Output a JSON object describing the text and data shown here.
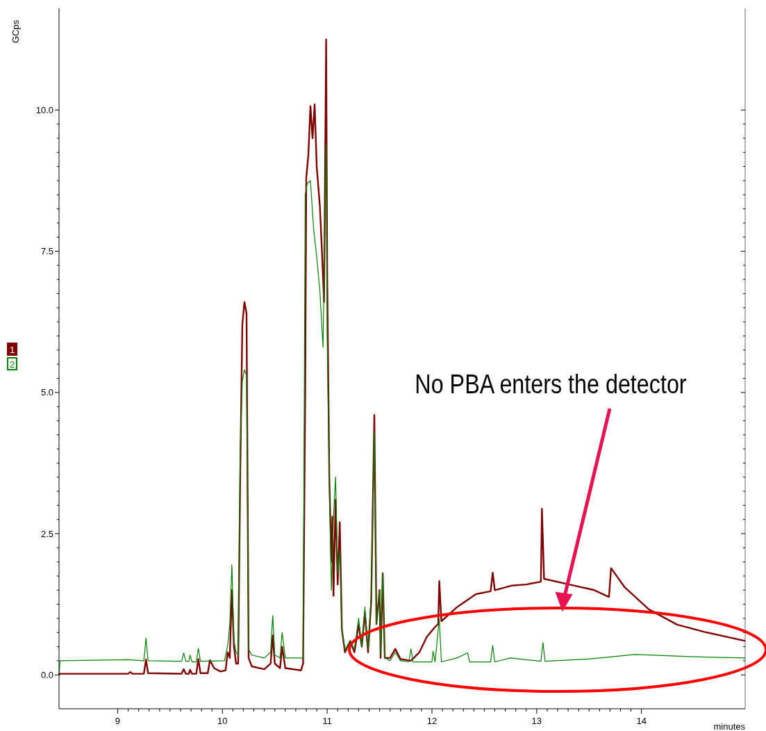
{
  "chart_data": {
    "type": "line",
    "ylabel": "GCps",
    "xlabel": "minutes",
    "xlim": [
      8.44,
      14.99
    ],
    "ylim": [
      -0.6,
      11.8
    ],
    "xticks": [
      9,
      10,
      11,
      12,
      13,
      14
    ],
    "yticks": [
      {
        "value": 0,
        "label": "0.0"
      },
      {
        "value": 2.5,
        "label": "2.5"
      },
      {
        "value": 5,
        "label": "5.0"
      },
      {
        "value": 7.5,
        "label": "7.5"
      },
      {
        "value": 10,
        "label": "10.0"
      }
    ],
    "legend": "left",
    "grid": false,
    "marker": "none",
    "line_style": "solid",
    "annotations": [
      "No PBA enters the detector"
    ],
    "series": [
      {
        "name": "1",
        "color": "#800000",
        "x": [
          8.44,
          8.45,
          9.1,
          9.12,
          9.14,
          9.25,
          9.27,
          9.29,
          9.61,
          9.63,
          9.65,
          9.68,
          9.69,
          9.71,
          9.75,
          9.77,
          9.79,
          9.86,
          9.88,
          9.92,
          9.98,
          10.03,
          10.05,
          10.07,
          10.09,
          10.11,
          10.13,
          10.15,
          10.17,
          10.19,
          10.21,
          10.23,
          10.25,
          10.28,
          10.4,
          10.46,
          10.48,
          10.5,
          10.55,
          10.57,
          10.6,
          10.75,
          10.77,
          10.79,
          10.8,
          10.82,
          10.84,
          10.86,
          10.88,
          10.9,
          10.93,
          10.95,
          10.97,
          10.99,
          11.0,
          11.02,
          11.04,
          11.05,
          11.06,
          11.08,
          11.1,
          11.12,
          11.14,
          11.17,
          11.22,
          11.26,
          11.3,
          11.33,
          11.36,
          11.39,
          11.42,
          11.45,
          11.47,
          11.5,
          11.51,
          11.53,
          11.55,
          11.6,
          11.65,
          11.7,
          11.8,
          11.88,
          11.95,
          12.03,
          12.06,
          12.07,
          12.09,
          12.24,
          12.42,
          12.56,
          12.58,
          12.6,
          12.76,
          12.9,
          13.04,
          13.05,
          13.07,
          13.31,
          13.55,
          13.69,
          13.71,
          13.84,
          14.07,
          14.34,
          14.6,
          14.99
        ],
        "values": [
          0,
          0.02,
          0.02,
          0.05,
          0.02,
          0.02,
          0.27,
          0.03,
          0.02,
          0.1,
          0.02,
          0.02,
          0.09,
          0.02,
          0.02,
          0.28,
          0.03,
          0.03,
          0.26,
          0.12,
          0.06,
          0.08,
          0.4,
          0.3,
          1.5,
          0.5,
          0.2,
          0.2,
          3.6,
          6.2,
          6.6,
          6.4,
          0.3,
          0.15,
          0.1,
          0.2,
          0.7,
          0.2,
          0.12,
          0.5,
          0.12,
          0.08,
          0.2,
          5,
          8.8,
          9.2,
          10.07,
          9.5,
          10.1,
          9,
          8.3,
          7.5,
          6.6,
          11.25,
          7,
          3.5,
          2,
          2.8,
          1.4,
          3.1,
          1.6,
          2.7,
          0.8,
          0.4,
          0.6,
          0.4,
          0.9,
          0.5,
          1.1,
          0.4,
          1.3,
          4.6,
          0.9,
          1.5,
          0.3,
          1.8,
          0.3,
          0.3,
          0.46,
          0.28,
          0.25,
          0.4,
          0.67,
          0.85,
          0.9,
          1.66,
          0.95,
          1.2,
          1.43,
          1.48,
          1.81,
          1.5,
          1.58,
          1.6,
          1.65,
          2.94,
          1.7,
          1.6,
          1.5,
          1.38,
          1.89,
          1.55,
          1.16,
          0.89,
          0.76,
          0.6
        ]
      },
      {
        "name": "2",
        "color": "#008000",
        "x": [
          8.44,
          8.45,
          9.1,
          9.25,
          9.27,
          9.29,
          9.61,
          9.63,
          9.65,
          9.68,
          9.69,
          9.71,
          9.75,
          9.77,
          9.79,
          10.02,
          10.05,
          10.07,
          10.09,
          10.11,
          10.13,
          10.15,
          10.17,
          10.19,
          10.21,
          10.23,
          10.25,
          10.28,
          10.4,
          10.46,
          10.48,
          10.5,
          10.55,
          10.57,
          10.6,
          10.77,
          10.79,
          10.81,
          10.84,
          10.87,
          10.9,
          10.93,
          10.96,
          10.99,
          11.0,
          11.02,
          11.04,
          11.06,
          11.08,
          11.1,
          11.12,
          11.14,
          11.17,
          11.22,
          11.26,
          11.3,
          11.33,
          11.36,
          11.39,
          11.42,
          11.45,
          11.47,
          11.5,
          11.51,
          11.53,
          11.55,
          11.6,
          11.65,
          11.7,
          11.78,
          11.8,
          11.82,
          12.0,
          12.01,
          12.03,
          12.07,
          12.09,
          12.24,
          12.34,
          12.36,
          12.56,
          12.58,
          12.6,
          12.75,
          13.04,
          13.06,
          13.08,
          13.5,
          13.94,
          14.5,
          14.99
        ],
        "values": [
          0,
          0.25,
          0.27,
          0.25,
          0.65,
          0.25,
          0.24,
          0.39,
          0.24,
          0.24,
          0.35,
          0.23,
          0.23,
          0.47,
          0.24,
          0.25,
          0.52,
          0.9,
          1.95,
          0.6,
          0.4,
          0.35,
          4.0,
          5.2,
          5.4,
          5.3,
          0.45,
          0.35,
          0.3,
          0.4,
          1.05,
          0.35,
          0.3,
          0.75,
          0.3,
          0.3,
          8.5,
          8.7,
          8.75,
          7.9,
          7.4,
          6.8,
          5.8,
          9.4,
          6,
          3.4,
          1.5,
          2.8,
          3.5,
          1.8,
          2.2,
          0.8,
          0.45,
          0.6,
          0.45,
          1.0,
          0.5,
          1.2,
          0.45,
          1.4,
          4.3,
          0.9,
          1.5,
          0.35,
          1.8,
          0.3,
          0.25,
          0.4,
          0.25,
          0.23,
          0.46,
          0.23,
          0.23,
          0.42,
          0.23,
          0.99,
          0.23,
          0.3,
          0.39,
          0.23,
          0.23,
          0.52,
          0.23,
          0.3,
          0.24,
          0.57,
          0.24,
          0.28,
          0.36,
          0.32,
          0.3
        ]
      }
    ]
  }
}
